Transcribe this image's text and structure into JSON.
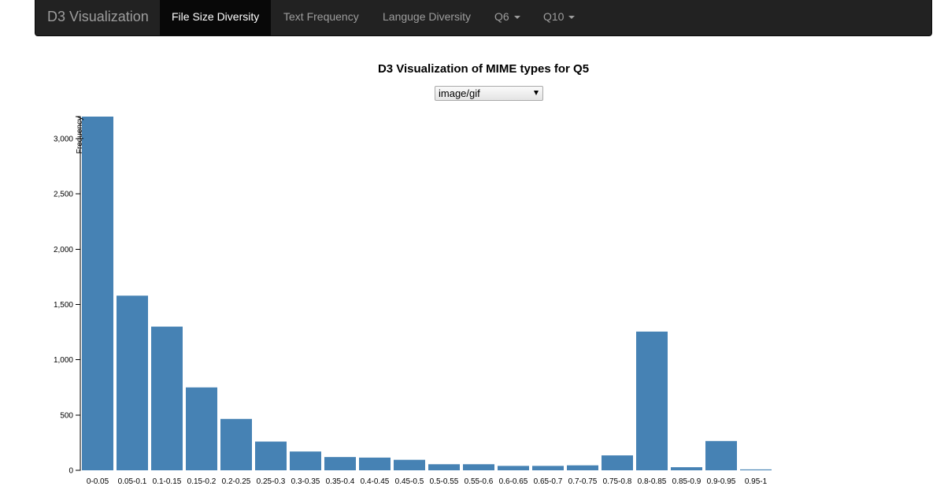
{
  "navbar": {
    "brand": "D3 Visualization",
    "items": [
      {
        "label": "File Size Diversity",
        "active": true,
        "dropdown": false
      },
      {
        "label": "Text Frequency",
        "active": false,
        "dropdown": false
      },
      {
        "label": "Languge Diversity",
        "active": false,
        "dropdown": false
      },
      {
        "label": "Q6",
        "active": false,
        "dropdown": true
      },
      {
        "label": "Q10",
        "active": false,
        "dropdown": true
      }
    ]
  },
  "mime_select": {
    "selected": "image/gif"
  },
  "colors": {
    "bar": "#4682b4",
    "navbar": "#222222"
  },
  "chart_data": {
    "type": "bar",
    "title": "D3 Visualization of MIME types for Q5",
    "xlabel": "",
    "ylabel": "Frequency",
    "ylim": [
      0,
      3200
    ],
    "yticks": [
      0,
      500,
      1000,
      1500,
      2000,
      2500,
      3000
    ],
    "ytick_labels": [
      "0",
      "500",
      "1,000",
      "1,500",
      "2,000",
      "2,500",
      "3,000"
    ],
    "categories": [
      "0-0.05",
      "0.05-0.1",
      "0.1-0.15",
      "0.15-0.2",
      "0.2-0.25",
      "0.25-0.3",
      "0.3-0.35",
      "0.35-0.4",
      "0.4-0.45",
      "0.45-0.5",
      "0.5-0.55",
      "0.55-0.6",
      "0.6-0.65",
      "0.65-0.7",
      "0.7-0.75",
      "0.75-0.8",
      "0.8-0.85",
      "0.85-0.9",
      "0.9-0.95",
      "0.95-1"
    ],
    "values": [
      3200,
      1580,
      1300,
      750,
      465,
      260,
      170,
      120,
      115,
      95,
      55,
      55,
      40,
      40,
      45,
      135,
      1255,
      28,
      265,
      8
    ],
    "grid": false
  }
}
